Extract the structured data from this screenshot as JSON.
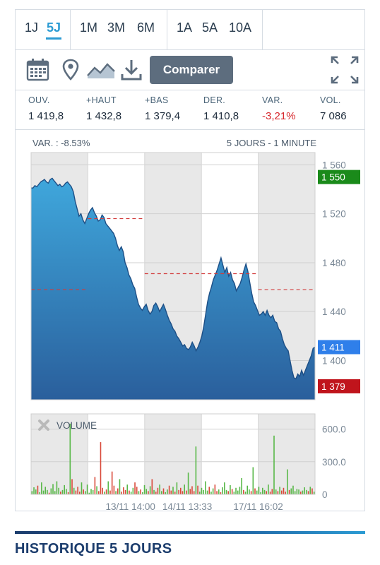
{
  "periods": {
    "group1": [
      {
        "label": "1J",
        "active": false
      },
      {
        "label": "5J",
        "active": true
      }
    ],
    "group2": [
      {
        "label": "1M",
        "active": false
      },
      {
        "label": "3M",
        "active": false
      },
      {
        "label": "6M",
        "active": false
      }
    ],
    "group3": [
      {
        "label": "1A",
        "active": false
      },
      {
        "label": "5A",
        "active": false
      },
      {
        "label": "10A",
        "active": false
      }
    ]
  },
  "toolbar": {
    "compare_label": "Comparer",
    "icons": [
      "calendar-icon",
      "map-pin-icon",
      "area-chart-icon",
      "download-icon",
      "expand-icon"
    ]
  },
  "stats": [
    {
      "label": "OUV.",
      "value": "1 419,8",
      "negative": false
    },
    {
      "label": "+HAUT",
      "value": "1 432,8",
      "negative": false
    },
    {
      "label": "+BAS",
      "value": "1 379,4",
      "negative": false
    },
    {
      "label": "DER.",
      "value": "1 410,8",
      "negative": false
    },
    {
      "label": "VAR.",
      "value": "-3,21%",
      "negative": true
    },
    {
      "label": "VOL.",
      "value": "7 086",
      "negative": false
    }
  ],
  "colors": {
    "accent": "#2b9bd3",
    "high": "#1a8a1a",
    "last": "#2f7fea",
    "low": "#c0141c",
    "area_top": "#3fa7dc",
    "area_bottom": "#2a5f9c",
    "ref_line": "#d23b3b",
    "vol_up": "#58b848",
    "vol_down": "#d94a3a"
  },
  "chart_data": [
    {
      "type": "area",
      "header_left": "VAR. : -8.53%",
      "header_right": "5 JOURS - 1 MINUTE",
      "ylim": [
        1368,
        1570
      ],
      "yticks": [
        "1 560",
        "1 520",
        "1 480",
        "1 440",
        "1 400"
      ],
      "ytick_values": [
        1560,
        1520,
        1480,
        1440,
        1400
      ],
      "price_labels": [
        {
          "name": "high",
          "text": "1 550",
          "value": 1550
        },
        {
          "name": "last",
          "text": "1 411",
          "value": 1411
        },
        {
          "name": "low",
          "text": "1 379",
          "value": 1379
        }
      ],
      "sessions": [
        {
          "shaded": true
        },
        {
          "shaded": false
        },
        {
          "shaded": true
        },
        {
          "shaded": false
        },
        {
          "shaded": true
        }
      ],
      "prev_close_lines": [
        {
          "session": 1,
          "value": 1516
        },
        {
          "session": 2,
          "value": 1471
        },
        {
          "session": 3,
          "value": 1471
        },
        {
          "session": 4,
          "value": 1458
        },
        {
          "session": 0,
          "value": 1458
        }
      ],
      "series": [
        {
          "values": [
            1541,
            1541,
            1543,
            1542,
            1544,
            1546,
            1547,
            1548,
            1546,
            1545,
            1548,
            1549,
            1547,
            1545,
            1543,
            1544,
            1542,
            1543,
            1545,
            1546,
            1544,
            1542,
            1538,
            1530,
            1524,
            1518,
            1520,
            1515,
            1512,
            1516,
            1520,
            1523,
            1525,
            1521,
            1518,
            1514,
            1515,
            1519,
            1517,
            1512,
            1510,
            1508,
            1506,
            1504,
            1500,
            1494,
            1490,
            1493,
            1489,
            1480,
            1476,
            1470,
            1467,
            1462,
            1459,
            1452,
            1446,
            1443,
            1441,
            1444,
            1446,
            1441,
            1438,
            1440,
            1445,
            1447,
            1444,
            1440,
            1443,
            1446,
            1442,
            1437,
            1433,
            1430,
            1426,
            1424,
            1420,
            1418,
            1415,
            1412,
            1413,
            1410,
            1409,
            1411,
            1415,
            1412,
            1408,
            1411,
            1415,
            1420,
            1428,
            1438,
            1448,
            1455,
            1460,
            1466,
            1470,
            1474,
            1479,
            1484,
            1478,
            1472,
            1476,
            1469,
            1472,
            1466,
            1463,
            1457,
            1460,
            1463,
            1468,
            1474,
            1479,
            1473,
            1464,
            1455,
            1448,
            1445,
            1441,
            1437,
            1438,
            1440,
            1437,
            1441,
            1437,
            1435,
            1437,
            1432,
            1431,
            1426,
            1424,
            1418,
            1413,
            1410,
            1408,
            1400,
            1392,
            1386,
            1385,
            1389,
            1387,
            1392,
            1388,
            1392,
            1396,
            1400,
            1404,
            1410,
            1411
          ]
        }
      ]
    },
    {
      "type": "bar",
      "label": "VOLUME",
      "ylim": [
        0,
        740
      ],
      "yticks": [
        "600.0",
        "300.0",
        "0"
      ],
      "ytick_values": [
        600,
        300,
        0
      ],
      "xticks": [
        "13/11 14:00",
        "14/11 13:33",
        "17/11 16:02"
      ],
      "series": [
        {
          "name": "volume",
          "values": [
            30,
            65,
            45,
            80,
            20,
            110,
            35,
            70,
            40,
            15,
            55,
            95,
            30,
            120,
            60,
            25,
            40,
            85,
            50,
            20,
            650,
            140,
            60,
            35,
            70,
            25,
            110,
            45,
            30,
            90,
            15,
            50,
            40,
            160,
            75,
            30,
            480,
            60,
            25,
            45,
            120,
            35,
            210,
            80,
            30,
            55,
            140,
            25,
            65,
            40,
            90,
            35,
            25,
            60,
            110,
            70,
            30,
            45,
            20,
            85,
            50,
            30,
            75,
            140,
            40,
            25,
            60,
            90,
            30,
            55,
            20,
            45,
            80,
            35,
            70,
            25,
            110,
            40,
            60,
            30,
            90,
            35,
            200,
            50,
            75,
            30,
            440,
            80,
            25,
            60,
            40,
            120,
            35,
            70,
            25,
            55,
            90,
            30,
            45,
            20,
            65,
            110,
            40,
            30,
            85,
            50,
            25,
            60,
            35,
            70,
            150,
            40,
            25,
            80,
            45,
            30,
            250,
            55,
            35,
            70,
            20,
            60,
            40,
            30,
            90,
            25,
            50,
            540,
            45,
            30,
            70,
            35,
            60,
            25,
            230,
            40,
            55,
            80,
            30,
            50,
            45,
            25,
            35,
            65,
            40,
            30,
            70,
            55,
            25
          ]
        }
      ]
    }
  ],
  "history_title": "HISTORIQUE 5 JOURS"
}
